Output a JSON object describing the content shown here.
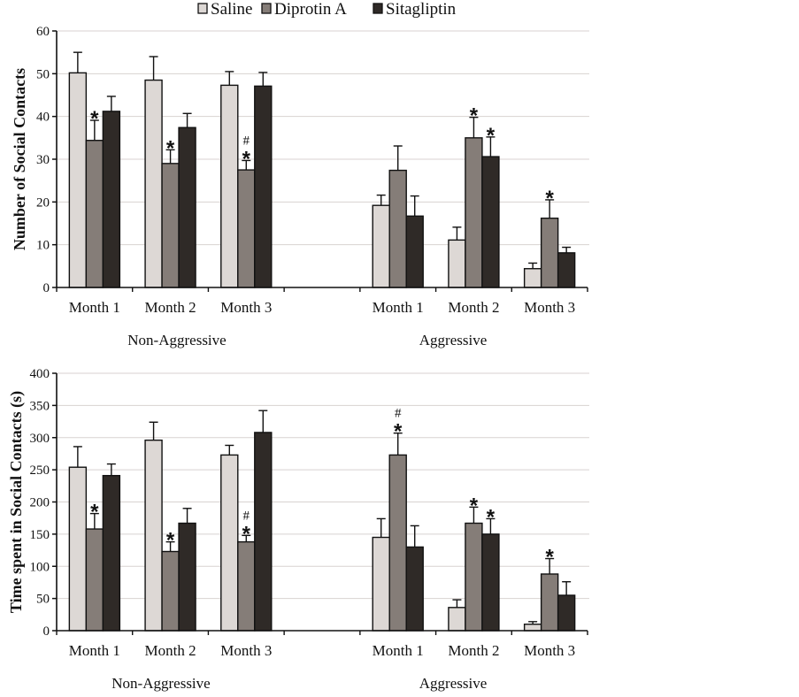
{
  "legend": [
    {
      "name": "Saline",
      "color": "#ddd8d5"
    },
    {
      "name": "Diprotin A",
      "color": "#857d78"
    },
    {
      "name": "Sitagliptin",
      "color": "#2f2a27"
    }
  ],
  "chart_data": [
    {
      "type": "bar",
      "title": "",
      "ylabel": "Number of Social Contacts",
      "xlabel": "",
      "ylim": [
        0,
        60
      ],
      "yticks": [
        0,
        10,
        20,
        30,
        40,
        50,
        60
      ],
      "grid": true,
      "legend_position": "top",
      "groups": [
        "Non-Aggressive",
        "Aggressive"
      ],
      "categories": [
        "Month 1",
        "Month 2",
        "Month 3",
        "",
        "Month 1",
        "Month 2",
        "Month 3"
      ],
      "series": [
        {
          "name": "Saline",
          "values": [
            50.2,
            48.5,
            47.3,
            null,
            19.2,
            11.1,
            4.4
          ],
          "errors": [
            4.8,
            5.5,
            3.2,
            null,
            2.4,
            3.0,
            1.3
          ]
        },
        {
          "name": "Diprotin A",
          "values": [
            34.4,
            29.0,
            27.5,
            null,
            27.4,
            35.0,
            16.2
          ],
          "errors": [
            4.7,
            3.2,
            2.2,
            null,
            5.7,
            4.8,
            4.3
          ]
        },
        {
          "name": "Sitagliptin",
          "values": [
            41.2,
            37.4,
            47.1,
            null,
            16.7,
            30.6,
            8.1
          ],
          "errors": [
            3.5,
            3.3,
            3.2,
            null,
            4.7,
            4.6,
            1.3
          ]
        }
      ],
      "annotations": [
        {
          "category_index": 0,
          "series": "Diprotin A",
          "marks": [
            "*"
          ]
        },
        {
          "category_index": 1,
          "series": "Diprotin A",
          "marks": [
            "*"
          ]
        },
        {
          "category_index": 2,
          "series": "Diprotin A",
          "marks": [
            "*",
            "#"
          ]
        },
        {
          "category_index": 5,
          "series": "Diprotin A",
          "marks": [
            "*"
          ]
        },
        {
          "category_index": 5,
          "series": "Sitagliptin",
          "marks": [
            "*"
          ]
        },
        {
          "category_index": 6,
          "series": "Diprotin A",
          "marks": [
            "*"
          ]
        }
      ]
    },
    {
      "type": "bar",
      "title": "",
      "ylabel": "Time spent in Social Contacts (s)",
      "xlabel": "",
      "ylim": [
        0,
        400
      ],
      "yticks": [
        0,
        50,
        100,
        150,
        200,
        250,
        300,
        350,
        400
      ],
      "grid": true,
      "groups": [
        "Non-Aggressive",
        "Aggressive"
      ],
      "categories": [
        "Month 1",
        "Month 2",
        "Month 3",
        "",
        "Month 1",
        "Month 2",
        "Month 3"
      ],
      "series": [
        {
          "name": "Saline",
          "values": [
            254,
            296,
            273,
            null,
            145,
            36,
            10
          ],
          "errors": [
            32,
            28,
            15,
            null,
            29,
            12,
            4
          ]
        },
        {
          "name": "Diprotin A",
          "values": [
            158,
            123,
            138,
            null,
            273,
            167,
            88
          ],
          "errors": [
            24,
            15,
            10,
            null,
            34,
            25,
            24
          ]
        },
        {
          "name": "Sitagliptin",
          "values": [
            241,
            167,
            308,
            null,
            130,
            150,
            55
          ],
          "errors": [
            18,
            23,
            34,
            null,
            33,
            24,
            21
          ]
        }
      ],
      "annotations": [
        {
          "category_index": 0,
          "series": "Diprotin A",
          "marks": [
            "*"
          ]
        },
        {
          "category_index": 1,
          "series": "Diprotin A",
          "marks": [
            "*"
          ]
        },
        {
          "category_index": 2,
          "series": "Diprotin A",
          "marks": [
            "*",
            "#"
          ]
        },
        {
          "category_index": 4,
          "series": "Diprotin A",
          "marks": [
            "*",
            "#"
          ]
        },
        {
          "category_index": 5,
          "series": "Diprotin A",
          "marks": [
            "*"
          ]
        },
        {
          "category_index": 5,
          "series": "Sitagliptin",
          "marks": [
            "*"
          ]
        },
        {
          "category_index": 6,
          "series": "Diprotin A",
          "marks": [
            "*"
          ]
        }
      ]
    }
  ]
}
